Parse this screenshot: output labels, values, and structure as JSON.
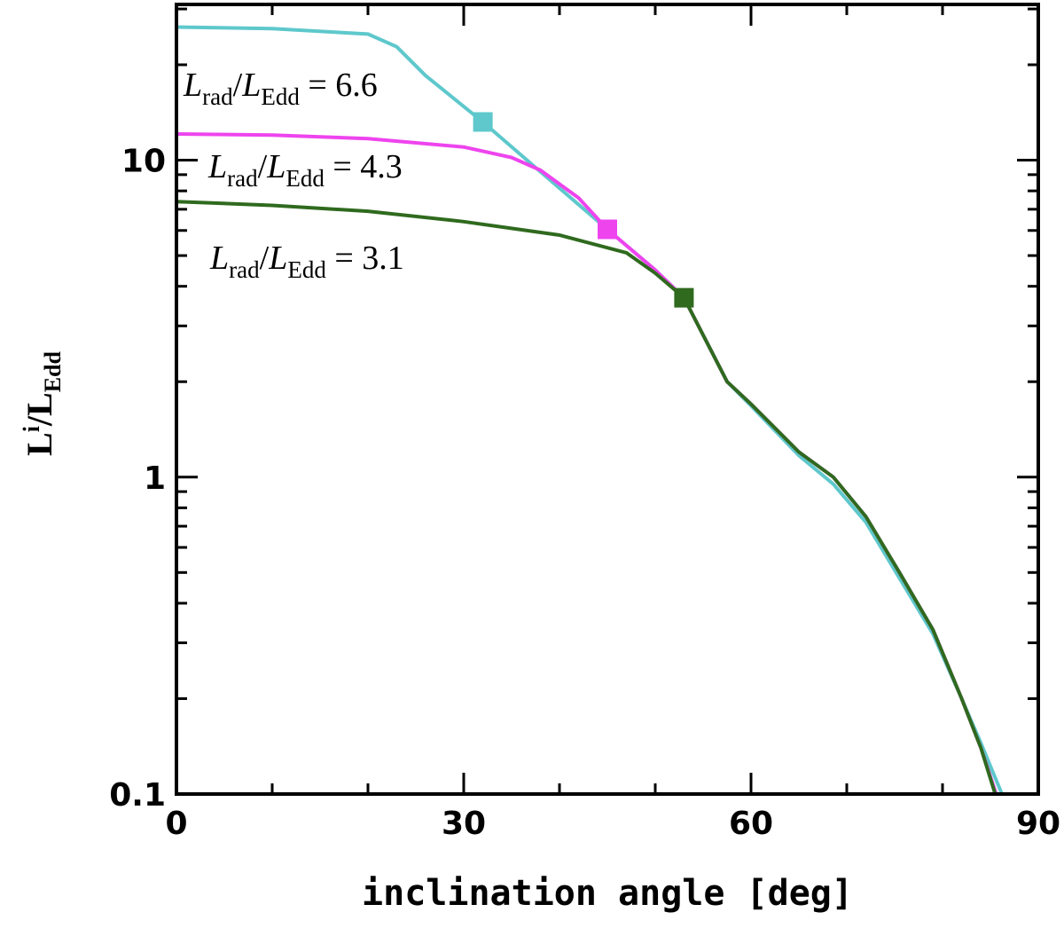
{
  "chart_data": {
    "type": "line",
    "xlabel": "inclination angle [deg]",
    "ylabel_parts": [
      "L",
      "i",
      "/L",
      "Edd"
    ],
    "xlim": [
      0,
      90
    ],
    "ylim": [
      0.1,
      31
    ],
    "log_y": true,
    "xticks": [
      0,
      30,
      60,
      90
    ],
    "xminor": [
      10,
      20,
      40,
      50,
      70,
      80
    ],
    "yticks": [
      0.1,
      1,
      10
    ],
    "yminor": [
      0.2,
      0.3,
      0.4,
      0.5,
      0.6,
      0.7,
      0.8,
      0.9,
      2,
      3,
      4,
      5,
      6,
      7,
      8,
      9,
      20,
      30
    ],
    "series": [
      {
        "color": "#5ec8cc",
        "x": [
          0,
          10,
          20,
          23,
          26,
          32,
          38,
          45,
          50,
          53,
          57.5,
          60,
          65,
          68.6,
          72,
          75.5,
          79,
          82,
          84,
          86.2
        ],
        "values": [
          26.3,
          26,
          25,
          22.8,
          18.5,
          13.2,
          9.2,
          6.05,
          4.5,
          3.68,
          2.0,
          1.68,
          1.17,
          0.95,
          0.72,
          0.48,
          0.32,
          0.2,
          0.145,
          0.1
        ],
        "marker_x": 32,
        "marker_y": 13.2
      },
      {
        "color": "#ee44ee",
        "x": [
          0,
          10,
          20,
          30,
          35,
          38,
          42,
          45,
          50,
          53,
          57.5,
          60,
          65,
          68.6,
          72,
          75.5,
          79,
          82,
          84,
          85.6
        ],
        "values": [
          12.1,
          12,
          11.7,
          11,
          10.2,
          9.3,
          7.6,
          6.05,
          4.5,
          3.68,
          2.0,
          1.7,
          1.2,
          1,
          0.75,
          0.5,
          0.33,
          0.2,
          0.14,
          0.1
        ],
        "marker_x": 45,
        "marker_y": 6.05
      },
      {
        "color": "#2f6a1e",
        "x": [
          0,
          10,
          20,
          30,
          40,
          47,
          50,
          53,
          57.5,
          60,
          65,
          68.6,
          72,
          75.5,
          79,
          82,
          84,
          85.5
        ],
        "values": [
          7.4,
          7.2,
          6.9,
          6.4,
          5.8,
          5.1,
          4.4,
          3.68,
          2.0,
          1.7,
          1.2,
          1,
          0.75,
          0.5,
          0.33,
          0.2,
          0.14,
          0.1
        ],
        "marker_x": 53,
        "marker_y": 3.68
      }
    ],
    "annotations": [
      {
        "parts": [
          "L",
          "rad",
          "/",
          "L",
          "Edd",
          " = 6.6"
        ]
      },
      {
        "parts": [
          "L",
          "rad",
          "/",
          "L",
          "Edd",
          " = 4.3"
        ]
      },
      {
        "parts": [
          "L",
          "rad",
          "/",
          "L",
          "Edd",
          " = 3.1"
        ]
      }
    ]
  }
}
